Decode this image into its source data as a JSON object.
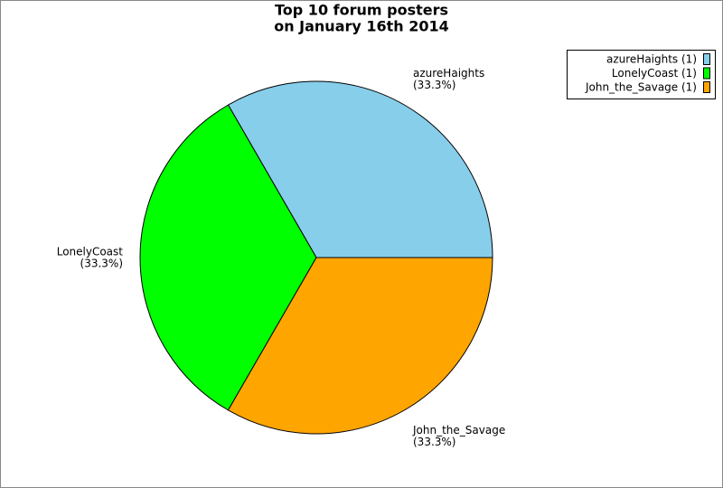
{
  "chart_data": {
    "type": "pie",
    "title": "Top 10 forum posters",
    "subtitle": "on January 16th 2014",
    "categories": [
      "azureHaights",
      "LonelyCoast",
      "John_the_Savage"
    ],
    "values": [
      33.3,
      33.3,
      33.3
    ],
    "value_labels": [
      "(33.3%)",
      "(33.3%)",
      "(33.3%)"
    ],
    "legend_labels": [
      "azureHaights (1)",
      "LonelyCoast (1)",
      "John_the_Savage (1)"
    ],
    "colors": [
      "#87ceeb",
      "#00ff00",
      "#ffa500"
    ],
    "legend": "top-right"
  }
}
